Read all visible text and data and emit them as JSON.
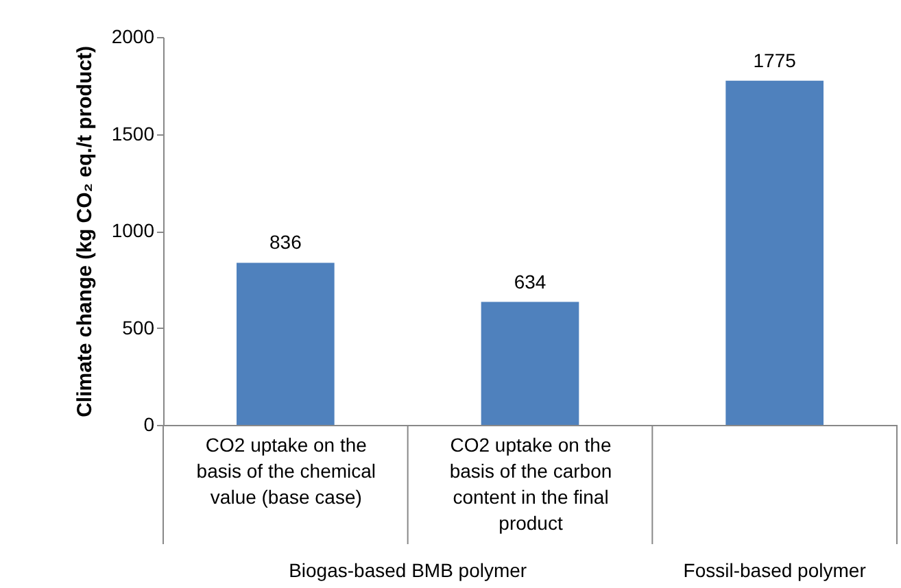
{
  "chart_data": {
    "type": "bar",
    "ylabel": "Climate change (kg CO₂ eq./t product)",
    "categories": [
      "CO2 uptake on the basis of the chemical value (base case)",
      "CO2 uptake on the basis of the carbon content in the final product",
      null
    ],
    "values": [
      836,
      634,
      1775
    ],
    "color": "#4f81bd",
    "ylim": [
      0,
      2000
    ],
    "yticks": [
      0,
      500,
      1000,
      1500,
      2000
    ],
    "data_labels": true,
    "grid": false,
    "annotations": [
      "Biogas-based BMB polymer",
      "Fossil-based polymer"
    ]
  }
}
